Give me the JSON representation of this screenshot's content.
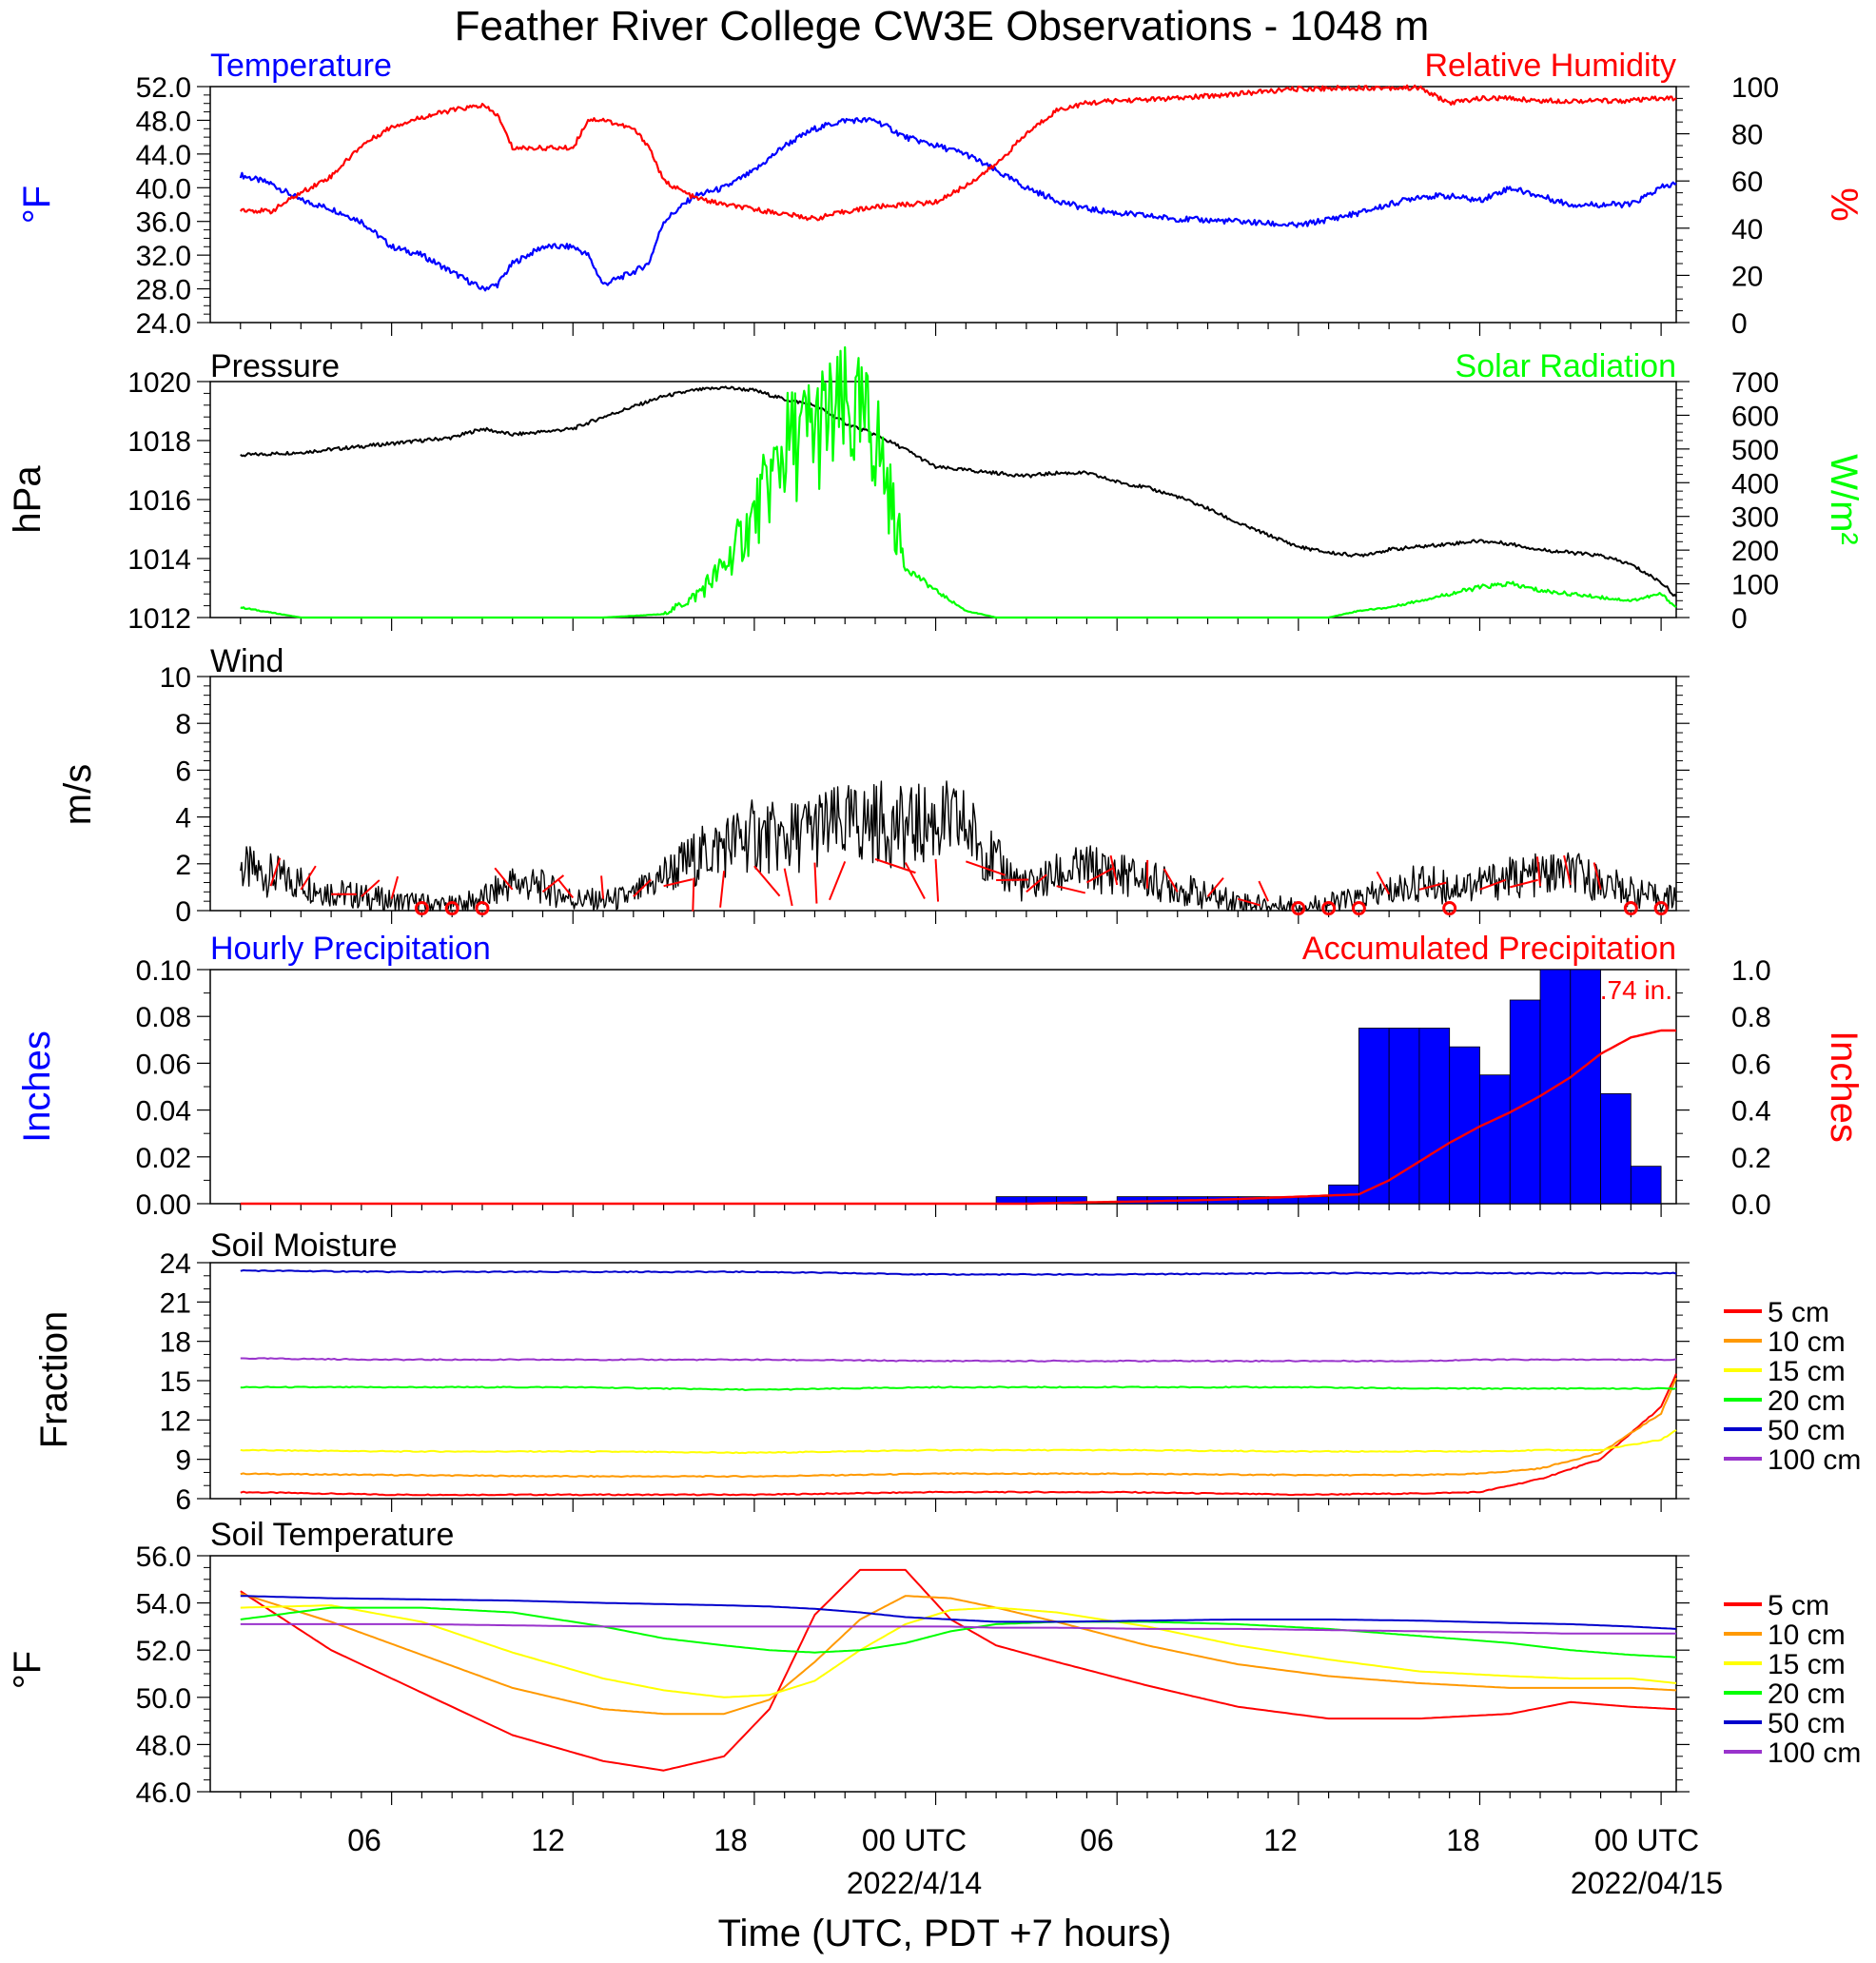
{
  "figure": {
    "title": "Feather River College CW3E Observations - 1048 m",
    "xaxis_label": "Time (UTC, PDT +7 hours)",
    "x_ticks": [
      "06",
      "12",
      "18",
      "00 UTC",
      "06",
      "12",
      "18",
      "00 UTC"
    ],
    "x_dates": [
      "2022/4/14",
      "2022/04/15"
    ]
  },
  "colors": {
    "blue": "#0000ff",
    "red": "#ff0000",
    "black": "#000000",
    "green": "#00ff00",
    "orange": "#ff9900",
    "yellow": "#ffff00",
    "navy": "#0000cc",
    "purple": "#9933cc"
  },
  "panels": {
    "temp_rh": {
      "left_title": "Temperature",
      "right_title": "Relative Humidity",
      "ylabel_left": "°F",
      "ylabel_right": "%",
      "left_ticks": [
        "52.0",
        "48.0",
        "44.0",
        "40.0",
        "36.0",
        "32.0",
        "28.0",
        "24.0"
      ],
      "right_ticks": [
        "100",
        "80",
        "60",
        "40",
        "20",
        "0"
      ]
    },
    "pressure_solar": {
      "left_title": "Pressure",
      "right_title": "Solar Radiation",
      "ylabel_left": "hPa",
      "ylabel_right": "W/m²",
      "left_ticks": [
        "1020",
        "1018",
        "1016",
        "1014",
        "1012"
      ],
      "right_ticks": [
        "700",
        "600",
        "500",
        "400",
        "300",
        "200",
        "100",
        "0"
      ]
    },
    "wind": {
      "left_title": "Wind",
      "ylabel_left": "m/s",
      "left_ticks": [
        "10",
        "8",
        "6",
        "4",
        "2",
        "0"
      ]
    },
    "precip": {
      "left_title": "Hourly Precipitation",
      "right_title": "Accumulated Precipitation",
      "ylabel_left": "Inches",
      "ylabel_right": "Inches",
      "annotation": "0.74 in.",
      "left_ticks": [
        "0.10",
        "0.08",
        "0.06",
        "0.04",
        "0.02",
        "0.00"
      ],
      "right_ticks": [
        "1.0",
        "0.8",
        "0.6",
        "0.4",
        "0.2",
        "0.0"
      ]
    },
    "soil_moisture": {
      "left_title": "Soil Moisture",
      "ylabel_left": "Fraction",
      "left_ticks": [
        "24",
        "21",
        "18",
        "15",
        "12",
        "9",
        "6"
      ]
    },
    "soil_temp": {
      "left_title": "Soil Temperature",
      "ylabel_left": "°F",
      "left_ticks": [
        "56.0",
        "54.0",
        "52.0",
        "50.0",
        "48.0",
        "46.0"
      ]
    }
  },
  "legend": [
    "5 cm",
    "10 cm",
    "15 cm",
    "20 cm",
    "50 cm",
    "100 cm"
  ],
  "chart_data": [
    {
      "type": "line",
      "title": "Temperature / Relative Humidity",
      "x_hours_utc": [
        1,
        2,
        3,
        4,
        5,
        6,
        7,
        8,
        9,
        9.5,
        10,
        11,
        12,
        12.5,
        13,
        14,
        14.5,
        15,
        16,
        17,
        18,
        19,
        20,
        21,
        22,
        23,
        24,
        25,
        26,
        27,
        28,
        29,
        30,
        32,
        34,
        36,
        38,
        40,
        41,
        42,
        43,
        44,
        45,
        46,
        47,
        48,
        48.5
      ],
      "xlim": [
        0,
        48.5
      ],
      "series": [
        {
          "name": "Temperature",
          "axis": "left",
          "unit": "°F",
          "ylim": [
            24,
            52
          ],
          "values": [
            41.5,
            40.5,
            38.5,
            37.5,
            36,
            33,
            32,
            30,
            28,
            28.5,
            31,
            33,
            33,
            32,
            28.5,
            30,
            31,
            36,
            39,
            40,
            42,
            45,
            47,
            48,
            48,
            46,
            45,
            44,
            42,
            40,
            38.5,
            37.5,
            37,
            36.3,
            36,
            35.5,
            37,
            39,
            39,
            38.5,
            40,
            39,
            38,
            38,
            38,
            40,
            40.5
          ]
        },
        {
          "name": "Relative Humidity",
          "axis": "right",
          "unit": "%",
          "ylim": [
            0,
            100
          ],
          "values": [
            48,
            47,
            55,
            62,
            75,
            83,
            87,
            90,
            92,
            88,
            74,
            74,
            74,
            86,
            86,
            82,
            75,
            60,
            53,
            50,
            48,
            46,
            44,
            47,
            49,
            50,
            51,
            58,
            67,
            80,
            90,
            93,
            94,
            95,
            97,
            99,
            99.5,
            99.5,
            93,
            95,
            95,
            94,
            94,
            94,
            94,
            95,
            95
          ]
        }
      ]
    },
    {
      "type": "line",
      "title": "Pressure / Solar Radiation",
      "x_hours_utc": [
        1,
        3,
        6,
        8,
        9,
        10,
        12,
        13,
        15,
        16,
        17,
        18,
        19,
        20,
        21,
        22,
        23,
        24,
        25,
        26,
        27,
        28,
        29,
        30,
        31,
        32,
        33,
        34,
        35,
        36,
        37,
        38,
        39,
        40,
        41,
        42,
        43,
        44,
        45,
        46,
        47,
        48,
        48.5
      ],
      "xlim": [
        0,
        48.5
      ],
      "series": [
        {
          "name": "Pressure",
          "axis": "left",
          "unit": "hPa",
          "ylim": [
            1012,
            1020
          ],
          "values": [
            1017.5,
            1017.6,
            1017.9,
            1018.1,
            1018.4,
            1018.2,
            1018.4,
            1018.8,
            1019.5,
            1019.7,
            1019.8,
            1019.7,
            1019.4,
            1019.2,
            1018.6,
            1018.2,
            1017.7,
            1017.1,
            1017.0,
            1016.9,
            1016.8,
            1016.9,
            1016.9,
            1016.6,
            1016.4,
            1016.1,
            1015.7,
            1015.2,
            1014.8,
            1014.4,
            1014.2,
            1014.1,
            1014.3,
            1014.4,
            1014.5,
            1014.6,
            1014.5,
            1014.3,
            1014.2,
            1014.1,
            1013.8,
            1013.2,
            1012.7
          ]
        },
        {
          "name": "Solar Radiation",
          "axis": "right",
          "unit": "W/m²",
          "ylim": [
            0,
            700
          ],
          "values": [
            30,
            0,
            0,
            0,
            0,
            0,
            0,
            0,
            10,
            60,
            150,
            300,
            500,
            560,
            600,
            550,
            150,
            80,
            20,
            0,
            0,
            0,
            0,
            0,
            0,
            0,
            0,
            0,
            0,
            0,
            0,
            20,
            30,
            50,
            70,
            90,
            100,
            80,
            70,
            60,
            50,
            70,
            30
          ]
        }
      ]
    },
    {
      "type": "line",
      "title": "Wind",
      "x_hours_utc": [
        1,
        2,
        3,
        4,
        5,
        6,
        7,
        8,
        9,
        10,
        11,
        12,
        13,
        14,
        15,
        16,
        17,
        18,
        19,
        20,
        21,
        22,
        23,
        24,
        25,
        26,
        27,
        28,
        29,
        30,
        31,
        32,
        33,
        34,
        35,
        36,
        37,
        38,
        39,
        40,
        41,
        42,
        43,
        44,
        45,
        46,
        47,
        48,
        48.5
      ],
      "xlim": [
        0,
        48.5
      ],
      "series": [
        {
          "name": "Wind speed",
          "unit": "m/s",
          "ylim": [
            0,
            10
          ],
          "values": [
            1.8,
            1.5,
            1.2,
            0.8,
            0.6,
            0.4,
            0.3,
            0.2,
            0.5,
            1.2,
            1.0,
            0.5,
            0.4,
            0.6,
            1.5,
            2.2,
            2.8,
            3.2,
            3.0,
            3.5,
            3.6,
            3.8,
            3.5,
            3.8,
            3.6,
            2.0,
            1.0,
            1.5,
            1.8,
            1.6,
            1.3,
            1.0,
            0.6,
            0.4,
            0.2,
            0.2,
            0.3,
            0.5,
            0.8,
            1.2,
            1.0,
            1.2,
            1.4,
            1.5,
            1.6,
            1.2,
            0.8,
            0.5,
            0.6
          ]
        }
      ]
    },
    {
      "type": "bar",
      "title": "Hourly Precipitation / Accumulated Precipitation",
      "x_hours_utc": [
        27,
        28,
        29,
        30,
        31,
        32,
        33,
        34,
        35,
        36,
        37,
        38,
        39,
        40,
        41,
        42,
        43,
        44,
        45,
        46,
        47,
        48
      ],
      "series": [
        {
          "name": "Hourly Precipitation",
          "axis": "left",
          "unit": "Inches",
          "ylim": [
            0,
            0.1
          ],
          "values": [
            0.003,
            0.003,
            0.003,
            0,
            0.003,
            0.003,
            0.003,
            0.003,
            0.003,
            0.003,
            0.003,
            0.008,
            0.075,
            0.075,
            0.075,
            0.067,
            0.055,
            0.087,
            0.1,
            0.1,
            0.047,
            0.016
          ]
        },
        {
          "name": "Accumulated Precipitation",
          "axis": "right",
          "unit": "Inches",
          "ylim": [
            0,
            1.0
          ],
          "values": [
            0.0,
            0.003,
            0.006,
            0.008,
            0.01,
            0.013,
            0.016,
            0.02,
            0.025,
            0.03,
            0.035,
            0.04,
            0.1,
            0.18,
            0.26,
            0.33,
            0.39,
            0.46,
            0.54,
            0.64,
            0.71,
            0.74
          ]
        }
      ]
    },
    {
      "type": "line",
      "title": "Soil Moisture",
      "x_hours_utc": [
        1,
        6,
        12,
        18,
        24,
        30,
        36,
        40,
        42,
        44,
        46,
        48,
        48.5
      ],
      "xlim": [
        0,
        48.5
      ],
      "ylim": [
        6,
        24
      ],
      "series": [
        {
          "name": "5 cm",
          "values": [
            6.5,
            6.3,
            6.3,
            6.3,
            6.5,
            6.5,
            6.3,
            6.4,
            6.5,
            7.5,
            9.0,
            13.0,
            15.5
          ]
        },
        {
          "name": "10 cm",
          "values": [
            7.9,
            7.8,
            7.7,
            7.7,
            7.9,
            7.9,
            7.8,
            7.8,
            7.9,
            8.3,
            9.5,
            12.5,
            15.2
          ]
        },
        {
          "name": "15 cm",
          "values": [
            9.7,
            9.6,
            9.6,
            9.5,
            9.7,
            9.7,
            9.6,
            9.6,
            9.6,
            9.7,
            9.7,
            10.5,
            11.2
          ]
        },
        {
          "name": "20 cm",
          "values": [
            14.5,
            14.5,
            14.5,
            14.3,
            14.5,
            14.5,
            14.5,
            14.4,
            14.4,
            14.4,
            14.4,
            14.4,
            14.4
          ]
        },
        {
          "name": "50 cm",
          "values": [
            23.4,
            23.3,
            23.3,
            23.3,
            23.1,
            23.1,
            23.2,
            23.2,
            23.2,
            23.2,
            23.2,
            23.2,
            23.2
          ]
        },
        {
          "name": "100 cm",
          "values": [
            16.7,
            16.6,
            16.6,
            16.6,
            16.5,
            16.5,
            16.5,
            16.5,
            16.6,
            16.6,
            16.6,
            16.6,
            16.6
          ]
        }
      ]
    },
    {
      "type": "line",
      "title": "Soil Temperature",
      "x_hours_utc": [
        1,
        4,
        7,
        10,
        13,
        15,
        17,
        18.5,
        20,
        21.5,
        23,
        24.5,
        26,
        28,
        31,
        34,
        37,
        40,
        43,
        45,
        47,
        48.5
      ],
      "xlim": [
        0,
        48.5
      ],
      "ylim": [
        46,
        56
      ],
      "series": [
        {
          "name": "5 cm",
          "values": [
            54.5,
            52.0,
            50.2,
            48.4,
            47.3,
            46.9,
            47.5,
            49.5,
            53.5,
            55.4,
            55.4,
            53.3,
            52.2,
            51.5,
            50.5,
            49.6,
            49.1,
            49.1,
            49.3,
            49.8,
            49.6,
            49.5
          ]
        },
        {
          "name": "10 cm",
          "values": [
            54.4,
            53.2,
            51.8,
            50.4,
            49.5,
            49.3,
            49.3,
            49.9,
            51.5,
            53.3,
            54.3,
            54.2,
            53.8,
            53.2,
            52.2,
            51.4,
            50.9,
            50.6,
            50.4,
            50.4,
            50.4,
            50.3
          ]
        },
        {
          "name": "15 cm",
          "values": [
            53.8,
            53.9,
            53.2,
            51.9,
            50.8,
            50.3,
            50.0,
            50.1,
            50.7,
            52.0,
            53.1,
            53.7,
            53.8,
            53.6,
            53.0,
            52.2,
            51.6,
            51.1,
            50.9,
            50.8,
            50.8,
            50.6
          ]
        },
        {
          "name": "20 cm",
          "values": [
            53.3,
            53.8,
            53.8,
            53.6,
            53.0,
            52.5,
            52.2,
            52.0,
            51.9,
            52.0,
            52.3,
            52.8,
            53.1,
            53.2,
            53.2,
            53.1,
            52.9,
            52.6,
            52.3,
            52.0,
            51.8,
            51.7
          ]
        },
        {
          "name": "50 cm",
          "values": [
            54.3,
            54.2,
            54.15,
            54.1,
            54.0,
            53.95,
            53.9,
            53.85,
            53.75,
            53.6,
            53.4,
            53.3,
            53.2,
            53.2,
            53.25,
            53.3,
            53.3,
            53.25,
            53.15,
            53.1,
            53.0,
            52.9
          ]
        },
        {
          "name": "100 cm",
          "values": [
            53.1,
            53.1,
            53.1,
            53.05,
            53.0,
            53.0,
            53.0,
            53.0,
            53.0,
            53.0,
            53.0,
            53.0,
            52.95,
            52.95,
            52.9,
            52.9,
            52.85,
            52.8,
            52.75,
            52.7,
            52.7,
            52.7
          ]
        }
      ]
    }
  ]
}
